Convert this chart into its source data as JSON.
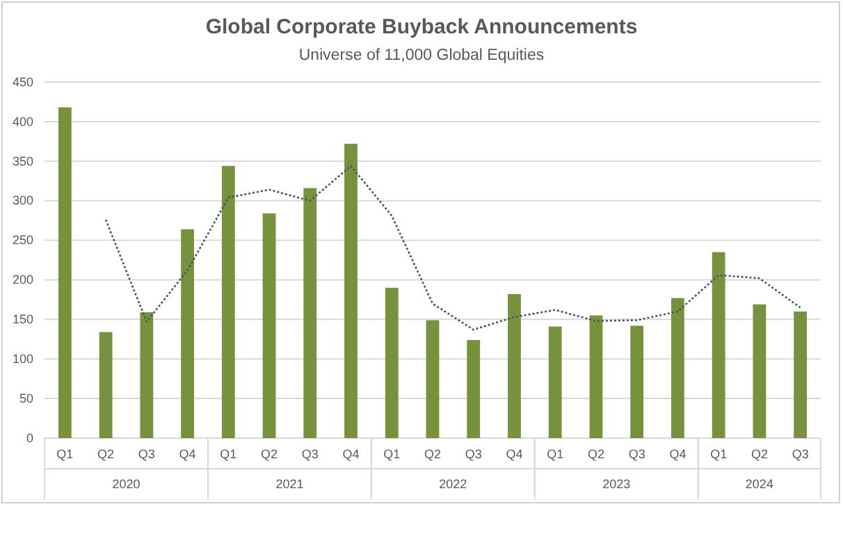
{
  "chart_data": {
    "type": "bar",
    "title": "Global Corporate Buyback Announcements",
    "subtitle": "Universe of 11,000 Global Equities",
    "categories": [
      "Q1",
      "Q2",
      "Q3",
      "Q4",
      "Q1",
      "Q2",
      "Q3",
      "Q4",
      "Q1",
      "Q2",
      "Q3",
      "Q4",
      "Q1",
      "Q2",
      "Q3",
      "Q4",
      "Q1",
      "Q2",
      "Q3"
    ],
    "series": [
      {
        "color": "#76923c",
        "values": [
          418,
          134,
          159,
          264,
          344,
          284,
          316,
          372,
          190,
          149,
          124,
          182,
          141,
          155,
          142,
          177,
          235,
          169,
          160
        ]
      },
      {
        "type": "line",
        "color": "#44546a",
        "line_style": "dotted",
        "values": [
          null,
          276,
          147,
          212,
          304,
          314,
          300,
          344,
          281,
          170,
          137,
          153,
          162,
          148,
          149,
          160,
          206,
          202,
          165
        ]
      }
    ],
    "annotations": [
      "2020",
      "2021",
      "2022",
      "2023",
      "2024"
    ],
    "ylim": [
      0,
      450
    ],
    "yticks": [
      0,
      50,
      100,
      150,
      200,
      250,
      300,
      350,
      400,
      450
    ],
    "grid": "y"
  }
}
